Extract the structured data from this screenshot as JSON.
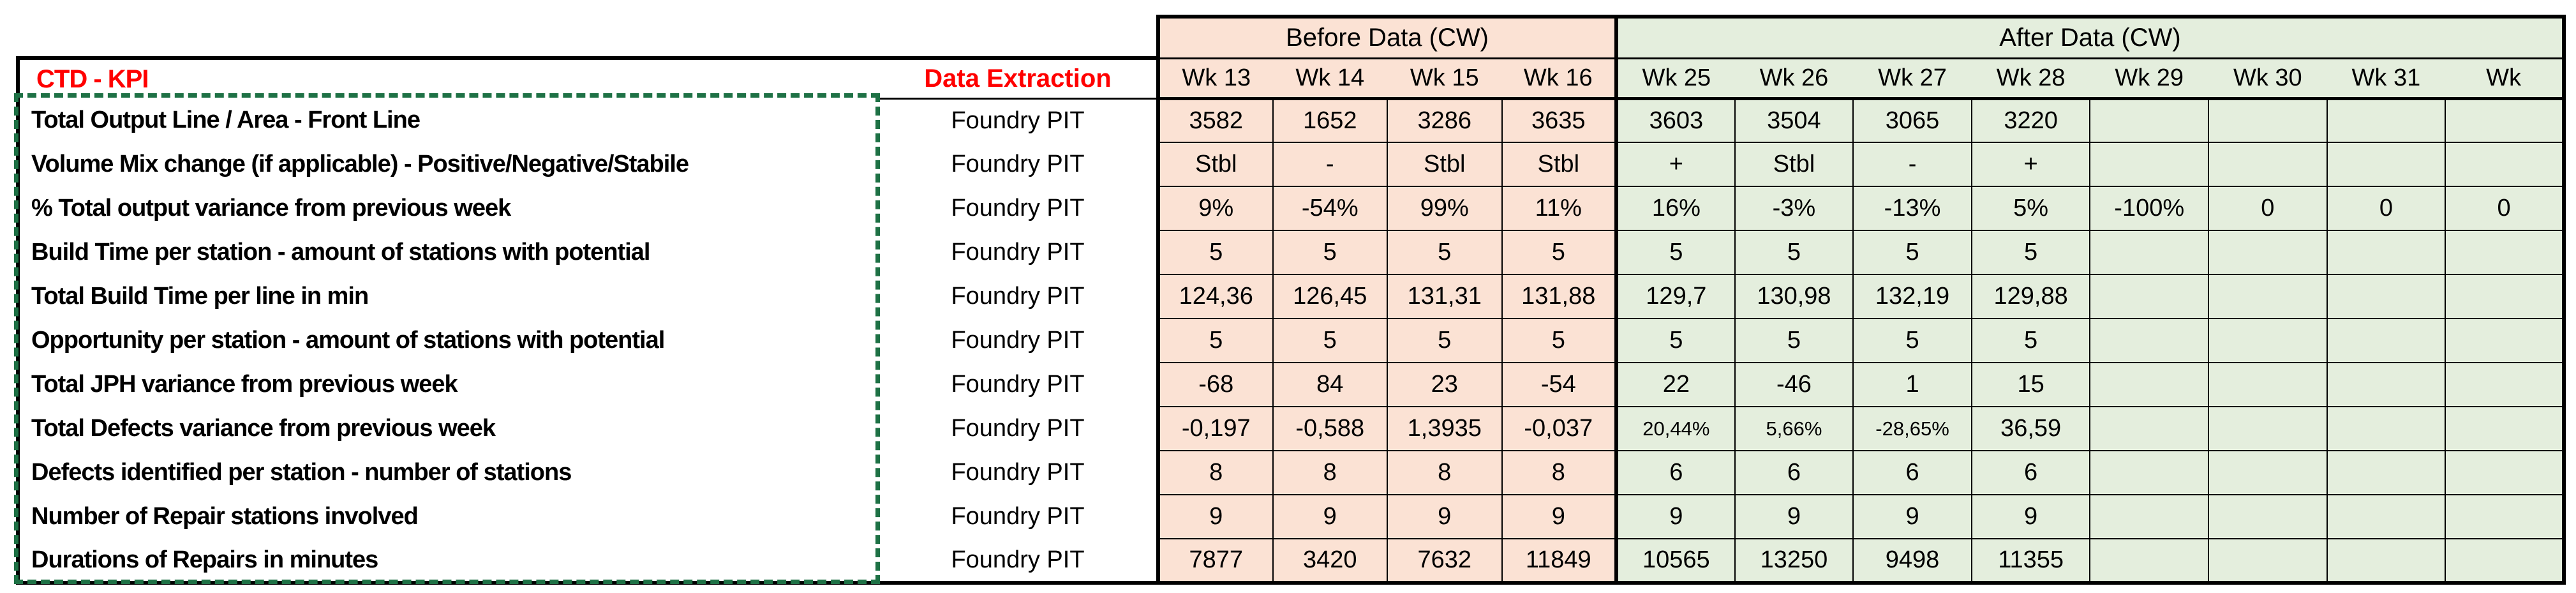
{
  "colors": {
    "before_fill": "#FBE2D4",
    "after_fill": "#E4EEDD",
    "accent_red": "#FF0000",
    "marquee_green": "#1E7145",
    "grid_black": "#000000"
  },
  "header": {
    "kpi_title": "CTD - KPI",
    "data_extraction_label": "Data Extraction",
    "before_label": "Before Data (CW)",
    "after_label": "After Data (CW)",
    "before_weeks": [
      "Wk 13",
      "Wk 14",
      "Wk 15",
      "Wk 16"
    ],
    "after_weeks": [
      "Wk 25",
      "Wk 26",
      "Wk 27",
      "Wk 28",
      "Wk 29",
      "Wk 30",
      "Wk 31",
      "Wk"
    ]
  },
  "rows": [
    {
      "label": "Total Output Line / Area - Front Line",
      "source": "Foundry PIT",
      "before": [
        "3582",
        "1652",
        "3286",
        "3635"
      ],
      "after": [
        "3603",
        "3504",
        "3065",
        "3220",
        "",
        "",
        "",
        ""
      ]
    },
    {
      "label": "Volume Mix change (if applicable) - Positive/Negative/Stabile",
      "source": "Foundry PIT",
      "before": [
        "Stbl",
        "-",
        "Stbl",
        "Stbl"
      ],
      "after": [
        "+",
        "Stbl",
        "-",
        "+",
        "",
        "",
        "",
        ""
      ]
    },
    {
      "label": "% Total output variance from previous week",
      "source": "Foundry PIT",
      "before": [
        "9%",
        "-54%",
        "99%",
        "11%"
      ],
      "after": [
        "16%",
        "-3%",
        "-13%",
        "5%",
        "-100%",
        "0",
        "0",
        "0"
      ]
    },
    {
      "label": "Build Time per station - amount of stations with potential",
      "source": "Foundry PIT",
      "before": [
        "5",
        "5",
        "5",
        "5"
      ],
      "after": [
        "5",
        "5",
        "5",
        "5",
        "",
        "",
        "",
        ""
      ]
    },
    {
      "label": "Total Build Time per line in min",
      "source": "Foundry PIT",
      "before": [
        "124,36",
        "126,45",
        "131,31",
        "131,88"
      ],
      "after": [
        "129,7",
        "130,98",
        "132,19",
        "129,88",
        "",
        "",
        "",
        ""
      ]
    },
    {
      "label": "Opportunity per station - amount of stations with potential",
      "source": "Foundry PIT",
      "before": [
        "5",
        "5",
        "5",
        "5"
      ],
      "after": [
        "5",
        "5",
        "5",
        "5",
        "",
        "",
        "",
        ""
      ]
    },
    {
      "label": "Total JPH variance from previous week",
      "source": "Foundry PIT",
      "before": [
        "-68",
        "84",
        "23",
        "-54"
      ],
      "after": [
        "22",
        "-46",
        "1",
        "15",
        "",
        "",
        "",
        ""
      ]
    },
    {
      "label": "Total Defects variance from previous week",
      "source": "Foundry PIT",
      "before": [
        "-0,197",
        "-0,588",
        "1,3935",
        "-0,037"
      ],
      "after": [
        "20,44%",
        "5,66%",
        "-28,65%",
        "36,59",
        "",
        "",
        "",
        ""
      ]
    },
    {
      "label": "Defects identified per station - number of stations",
      "source": "Foundry PIT",
      "before": [
        "8",
        "8",
        "8",
        "8"
      ],
      "after": [
        "6",
        "6",
        "6",
        "6",
        "",
        "",
        "",
        ""
      ]
    },
    {
      "label": "Number of Repair stations involved",
      "source": "Foundry PIT",
      "before": [
        "9",
        "9",
        "9",
        "9"
      ],
      "after": [
        "9",
        "9",
        "9",
        "9",
        "",
        "",
        "",
        ""
      ]
    },
    {
      "label": "Durations of Repairs in minutes",
      "source": "Foundry PIT",
      "before": [
        "7877",
        "3420",
        "7632",
        "11849"
      ],
      "after": [
        "10565",
        "13250",
        "9498",
        "11355",
        "",
        "",
        "",
        ""
      ]
    }
  ]
}
